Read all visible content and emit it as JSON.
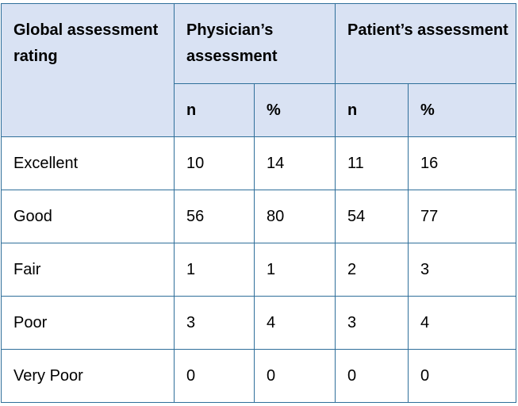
{
  "table": {
    "header_row1": {
      "rating": "Global assessment rating",
      "physician": "Physician’s assessment",
      "patient": "Patient’s assessment"
    },
    "header_row2": {
      "phys_n": "n",
      "phys_pct": "%",
      "pat_n": "n",
      "pat_pct": "%"
    },
    "rows": [
      {
        "rating": "Excellent",
        "phys_n": "10",
        "phys_pct": "14",
        "pat_n": "11",
        "pat_pct": "16"
      },
      {
        "rating": "Good",
        "phys_n": "56",
        "phys_pct": "80",
        "pat_n": "54",
        "pat_pct": "77"
      },
      {
        "rating": "Fair",
        "phys_n": "1",
        "phys_pct": "1",
        "pat_n": "2",
        "pat_pct": "3"
      },
      {
        "rating": "Poor",
        "phys_n": "3",
        "phys_pct": "4",
        "pat_n": "3",
        "pat_pct": "4"
      },
      {
        "rating": "Very Poor",
        "phys_n": "0",
        "phys_pct": "0",
        "pat_n": "0",
        "pat_pct": "0"
      }
    ]
  },
  "colors": {
    "header_bg": "#d9e2f3",
    "border": "#2f6f9a"
  }
}
